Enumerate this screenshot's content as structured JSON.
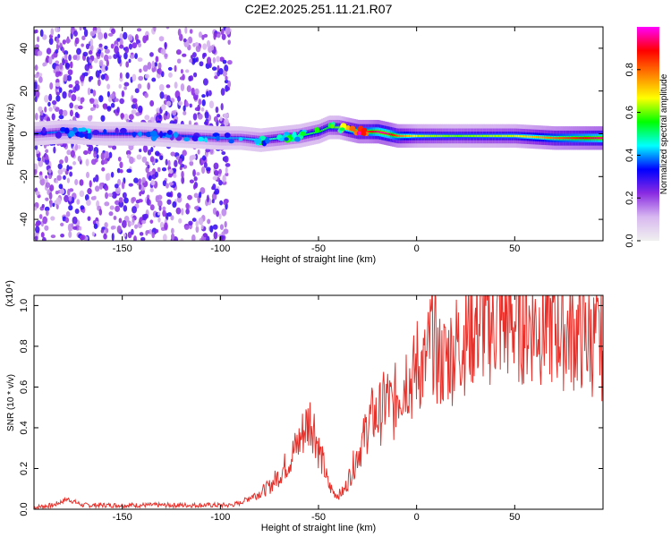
{
  "page_title": "C2E2.2025.251.11.21.R07",
  "chart_data": [
    {
      "type": "heatmap",
      "title": "C2E2.2025.251.11.21.R07",
      "xlabel": "Height of straight line (km)",
      "ylabel": "Frequency (Hz)",
      "xlim": [
        -195,
        95
      ],
      "ylim": [
        -50,
        50
      ],
      "x_ticks": [
        -150,
        -100,
        -50,
        0,
        50
      ],
      "x_tick_labels": [
        "-150",
        "-100",
        "-50",
        "0",
        "50"
      ],
      "y_ticks": [
        -40,
        -20,
        0,
        20,
        40
      ],
      "y_tick_labels": [
        "-40",
        "-20",
        "0",
        "20",
        "40"
      ],
      "colorbar": {
        "label": "Normalized spectral amplitude",
        "range": [
          0,
          1
        ],
        "ticks": [
          0.0,
          0.2,
          0.4,
          0.6,
          0.8
        ],
        "tick_labels": [
          "0.0",
          "0.2",
          "0.4",
          "0.6",
          "0.8"
        ],
        "colors": [
          "#f0f0f0",
          "#d8b8f0",
          "#8a2be2",
          "#0000ff",
          "#00ffff",
          "#00ff00",
          "#ffff00",
          "#ff7f00",
          "#ff0000",
          "#ff00ff"
        ]
      },
      "ridge": {
        "name": "dominant frequency",
        "x": [
          -195,
          -180,
          -160,
          -140,
          -120,
          -100,
          -90,
          -80,
          -70,
          -60,
          -50,
          -45,
          -40,
          -35,
          -30,
          -25,
          -20,
          -15,
          -10,
          0,
          20,
          50,
          70,
          95
        ],
        "y": [
          0,
          1,
          0,
          0,
          -1,
          -2,
          -2,
          -3,
          -2,
          -1,
          1,
          3,
          3,
          2,
          1,
          1,
          1,
          0,
          -1,
          -1,
          -1,
          -1,
          -2,
          -2
        ],
        "amplitude": [
          0.35,
          0.4,
          0.35,
          0.35,
          0.35,
          0.4,
          0.4,
          0.45,
          0.5,
          0.5,
          0.55,
          0.55,
          0.6,
          0.75,
          0.85,
          0.85,
          0.95,
          0.95,
          0.8,
          0.65,
          0.6,
          0.65,
          0.8,
          0.95
        ]
      },
      "scatter_zone": {
        "x_from": -195,
        "x_to": -95,
        "amplitude": [
          0.1,
          0.3
        ]
      }
    },
    {
      "type": "line",
      "title": "",
      "xlabel": "Height of straight line (km)",
      "ylabel": "SNR (10 * v/v)",
      "exponent_label": "(x10⁴)",
      "xlim": [
        -195,
        95
      ],
      "ylim": [
        0,
        1.05
      ],
      "x_ticks": [
        -150,
        -100,
        -50,
        0,
        50
      ],
      "x_tick_labels": [
        "-150",
        "-100",
        "-50",
        "0",
        "50"
      ],
      "y_ticks": [
        0.0,
        0.2,
        0.4,
        0.6,
        0.8,
        1.0
      ],
      "y_tick_labels": [
        "0.0",
        "0.2",
        "0.4",
        "0.6",
        "0.8",
        "1.0"
      ],
      "series": [
        {
          "name": "SNR",
          "color": "#e8302a",
          "x": [
            -195,
            -185,
            -178,
            -170,
            -160,
            -150,
            -140,
            -130,
            -120,
            -110,
            -100,
            -95,
            -90,
            -85,
            -80,
            -75,
            -70,
            -65,
            -60,
            -57,
            -54,
            -52,
            -50,
            -47,
            -45,
            -42,
            -40,
            -37,
            -35,
            -32,
            -30,
            -27,
            -25,
            -22,
            -20,
            -17,
            -15,
            -12,
            -10,
            -7,
            -5,
            -2,
            0,
            3,
            5,
            8,
            10,
            12,
            15,
            20,
            25,
            30,
            40,
            50,
            60,
            70,
            80,
            90,
            95
          ],
          "y": [
            0.01,
            0.02,
            0.05,
            0.02,
            0.02,
            0.02,
            0.02,
            0.02,
            0.02,
            0.02,
            0.02,
            0.02,
            0.03,
            0.06,
            0.08,
            0.11,
            0.17,
            0.24,
            0.33,
            0.4,
            0.45,
            0.4,
            0.3,
            0.2,
            0.12,
            0.08,
            0.07,
            0.09,
            0.14,
            0.22,
            0.28,
            0.34,
            0.42,
            0.46,
            0.45,
            0.5,
            0.55,
            0.48,
            0.58,
            0.62,
            0.68,
            0.62,
            0.72,
            0.7,
            0.7,
            0.88,
            0.76,
            0.72,
            0.74,
            0.8,
            0.86,
            0.9,
            0.92,
            0.93,
            0.92,
            0.9,
            0.87,
            0.83,
            0.8
          ]
        }
      ]
    }
  ]
}
